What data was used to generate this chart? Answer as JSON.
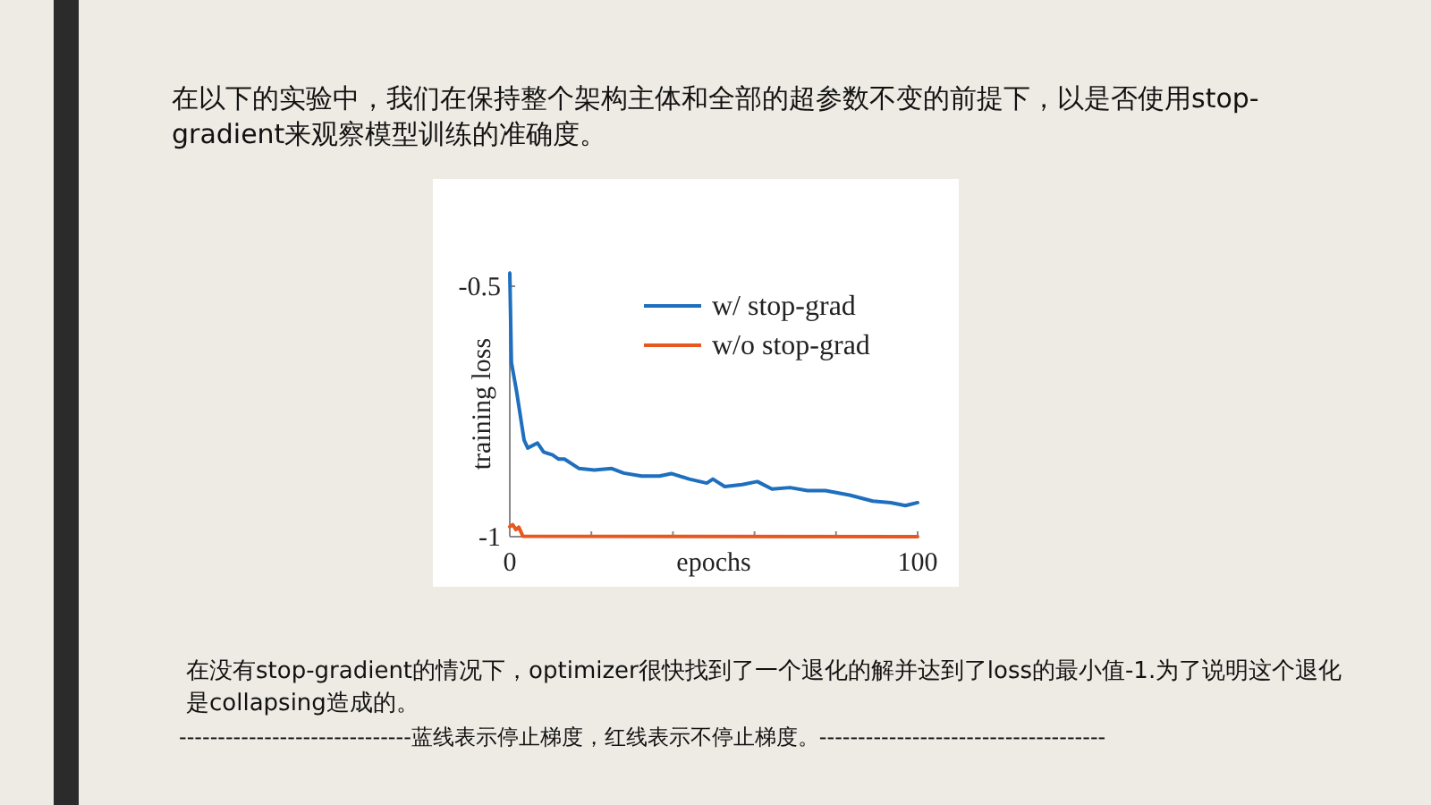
{
  "chart_data": {
    "type": "line",
    "title": "在以下的实验中，我们在保持整个架构主体和全部的超参数不变的前提下，以是否使用stop-gradient来观察模型训练的准确度。",
    "annotations": [
      "在没有stop-gradient的情况下，optimizer很快找到了一个退化的解并达到了loss的最小值-1.为了说明这个退化是collapsing造成的。",
      "------------------------------蓝线表示停止梯度，红线表示不停止梯度。-------------------------------------"
    ],
    "xlabel": "epochs",
    "ylabel": "training loss",
    "xlim": [
      0,
      100
    ],
    "ylim": [
      -1,
      -0.47
    ],
    "xticks": [
      0,
      {
        "value": 20,
        "label": null
      },
      {
        "value": 40,
        "label": null
      },
      {
        "value": 60,
        "label": null
      },
      {
        "value": 80,
        "label": null
      },
      100
    ],
    "yticks": [
      -1,
      -0.5
    ],
    "legend": "top right",
    "series": [
      {
        "name": "w/ stop-grad",
        "color": "#1f6fbf",
        "x": [
          0,
          0.4,
          1.7,
          3.5,
          4.4,
          6.8,
          8.3,
          10.5,
          11.9,
          13.4,
          17,
          20.7,
          25,
          27.9,
          32.3,
          36.7,
          39.6,
          44,
          48.3,
          49.8,
          52.7,
          57,
          60.7,
          64.3,
          68.7,
          73,
          77.4,
          83.3,
          89,
          93.4,
          97,
          100
        ],
        "values": [
          -0.474,
          -0.652,
          -0.712,
          -0.807,
          -0.823,
          -0.813,
          -0.831,
          -0.837,
          -0.845,
          -0.845,
          -0.864,
          -0.867,
          -0.864,
          -0.873,
          -0.879,
          -0.879,
          -0.874,
          -0.885,
          -0.893,
          -0.885,
          -0.9,
          -0.896,
          -0.89,
          -0.905,
          -0.902,
          -0.908,
          -0.908,
          -0.917,
          -0.929,
          -0.932,
          -0.938,
          -0.932
        ]
      },
      {
        "name": "w/o stop-grad",
        "color": "#e8571e",
        "x": [
          0,
          0.7,
          1.5,
          2.2,
          3.2,
          100
        ],
        "values": [
          -0.98,
          -0.976,
          -0.986,
          -0.981,
          -0.999,
          -1
        ]
      }
    ]
  }
}
